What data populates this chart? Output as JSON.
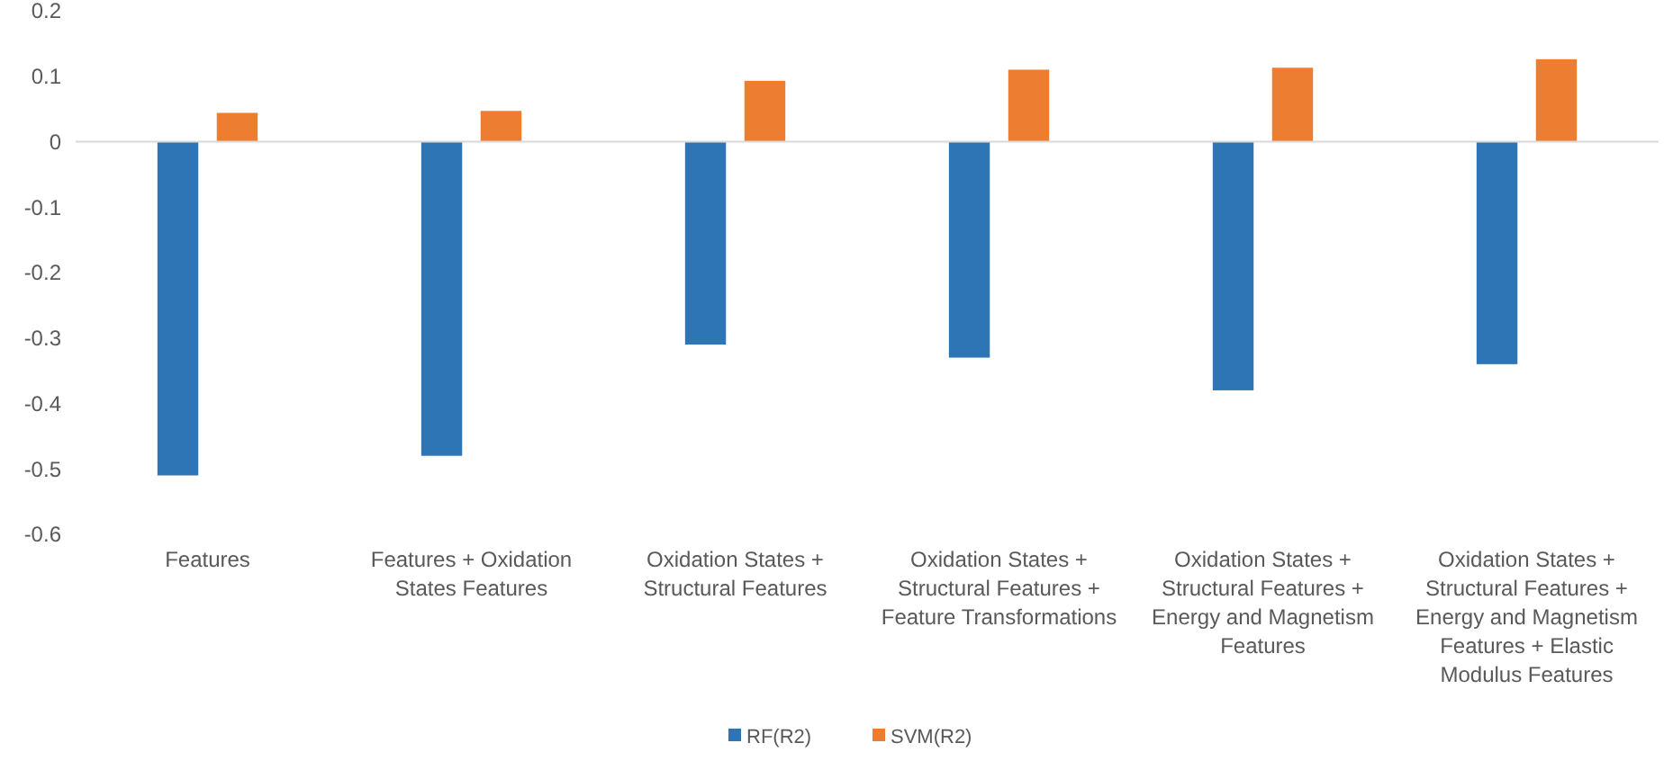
{
  "chart_data": {
    "type": "bar",
    "categories": [
      "Features",
      "Features + Oxidation States Features",
      "Oxidation States + Structural Features",
      "Oxidation States + Structural Features + Feature Transformations",
      "Oxidation States + Structural Features + Energy and Magnetism Features",
      "Oxidation States + Structural Features + Energy and Magnetism Features + Elastic Modulus Features"
    ],
    "series": [
      {
        "name": "RF(R2)",
        "color": "#2e75b6",
        "values": [
          -0.51,
          -0.48,
          -0.31,
          -0.33,
          -0.38,
          -0.34
        ]
      },
      {
        "name": "SVM(R2)",
        "color": "#ed7d31",
        "values": [
          0.044,
          0.047,
          0.093,
          0.11,
          0.113,
          0.126
        ]
      }
    ],
    "ylim": [
      -0.6,
      0.2
    ],
    "yticks": [
      -0.6,
      -0.5,
      -0.4,
      -0.3,
      -0.2,
      -0.1,
      0,
      0.1,
      0.2
    ],
    "ref_lines": [
      {
        "axis": "y",
        "value": 0,
        "color": "#d9d9d9"
      }
    ],
    "legend": "bottom"
  }
}
